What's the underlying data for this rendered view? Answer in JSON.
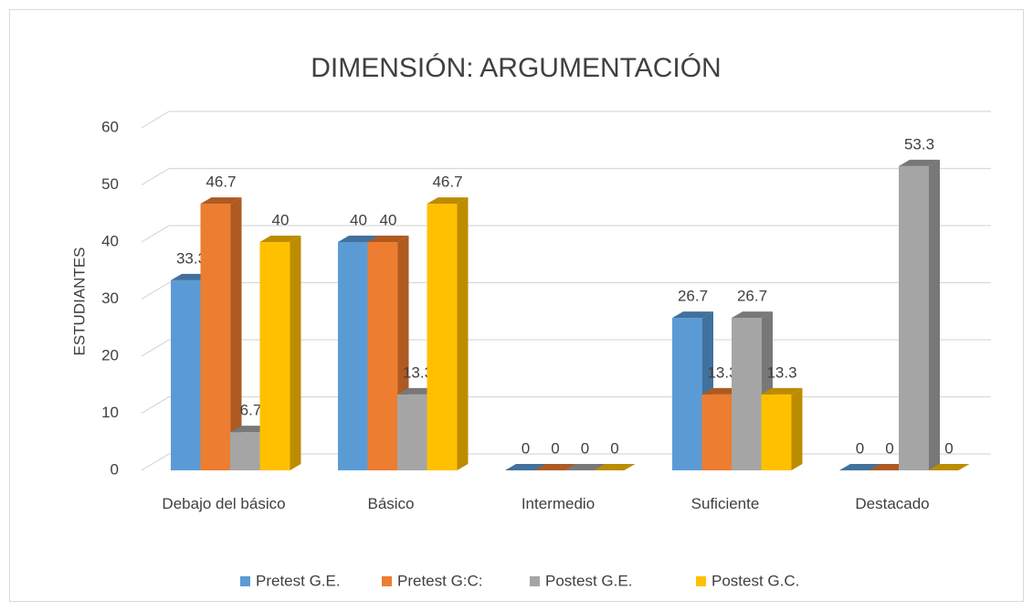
{
  "chart_data": {
    "type": "bar3d",
    "title": "DIMENSIÓN: ARGUMENTACIÓN",
    "y_label": "ESTUDIANTES",
    "categories": [
      "Debajo del básico",
      "Básico",
      "Intermedio",
      "Suficiente",
      "Destacado"
    ],
    "series": [
      {
        "name": "Pretest G.E.",
        "color": "#5b9bd5",
        "side": "#41719c",
        "values": [
          33.3,
          40,
          0,
          26.7,
          0
        ]
      },
      {
        "name": "Pretest G:C:",
        "color": "#ed7d31",
        "side": "#ae5a21",
        "values": [
          46.7,
          40,
          0,
          13.3,
          0
        ]
      },
      {
        "name": "Postest G.E.",
        "color": "#a5a5a5",
        "side": "#787878",
        "values": [
          6.7,
          13.3,
          0,
          26.7,
          53.3
        ]
      },
      {
        "name": "Postest G.C.",
        "color": "#ffc000",
        "side": "#bc8c00",
        "values": [
          40,
          46.7,
          0,
          13.3,
          0
        ]
      }
    ],
    "ylim": [
      0,
      60
    ],
    "yticks": [
      0,
      10,
      20,
      30,
      40,
      50,
      60
    ],
    "grid": true,
    "legend": "bottom"
  }
}
